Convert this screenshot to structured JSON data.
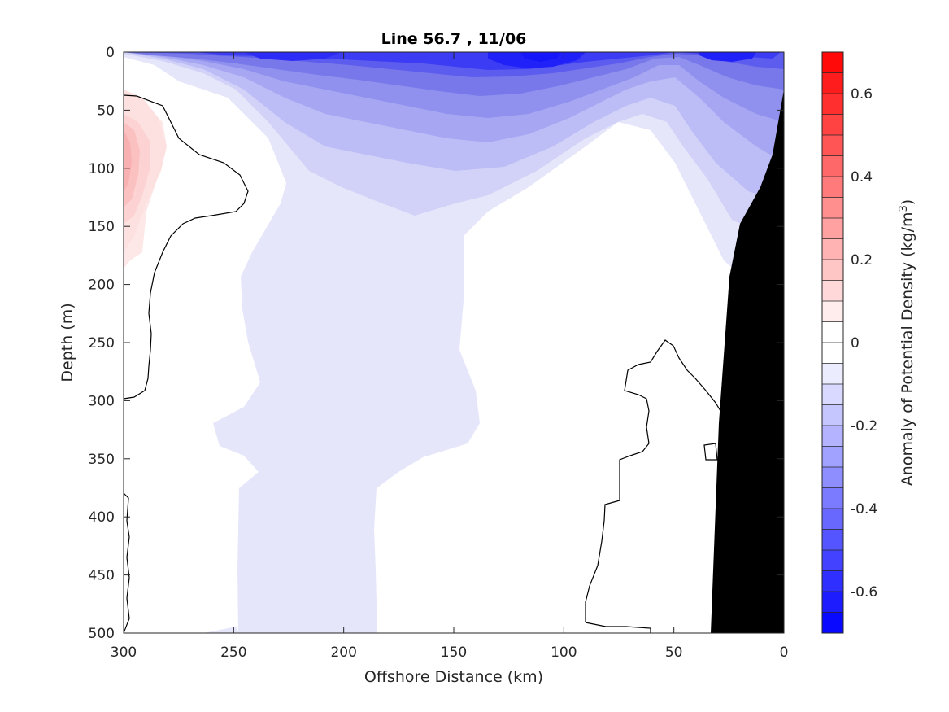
{
  "chart_data": {
    "type": "heatmap",
    "title": "Line 56.7 , 11/06",
    "xlabel": "Offshore Distance (km)",
    "ylabel": "Depth (m)",
    "xlim": [
      300,
      0
    ],
    "ylim": [
      0,
      500
    ],
    "x_ticks": [
      "300",
      "250",
      "200",
      "150",
      "100",
      "50",
      "0"
    ],
    "y_ticks": [
      "0",
      "50",
      "100",
      "150",
      "200",
      "250",
      "300",
      "350",
      "400",
      "450",
      "500"
    ],
    "colorbar": {
      "label": "Anomaly of Potential Density (kg/m",
      "label_superscript": "3",
      "label_close": ")",
      "range": [
        -0.7,
        0.7
      ],
      "ticks": [
        "-0.6",
        "-0.4",
        "-0.2",
        "0",
        "0.2",
        "0.4",
        "0.6"
      ],
      "levels": 28
    },
    "fill_colors": {
      "negative_strong": "#0000ff",
      "zero": "#ffffff",
      "positive_strong": "#ff0000",
      "bathymetry": "#000000"
    }
  }
}
